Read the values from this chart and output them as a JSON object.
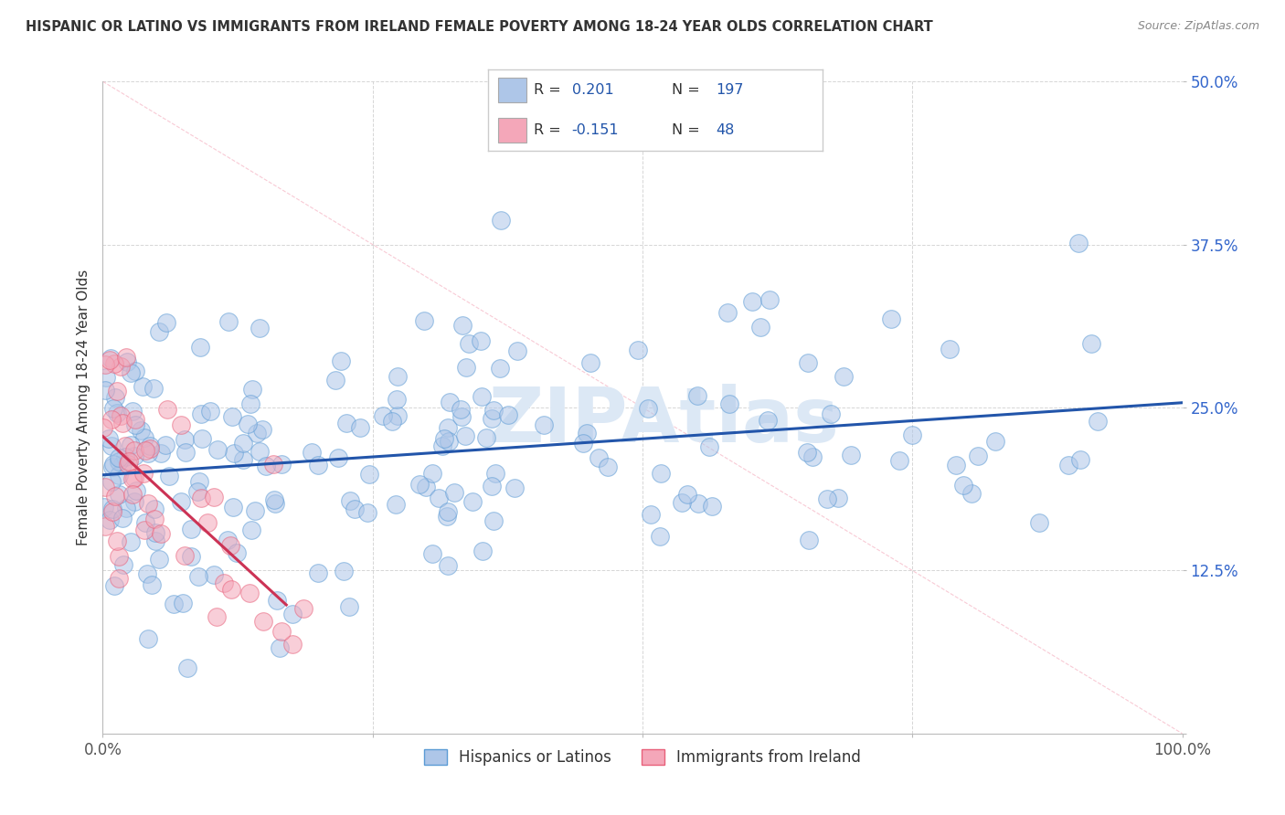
{
  "title": "HISPANIC OR LATINO VS IMMIGRANTS FROM IRELAND FEMALE POVERTY AMONG 18-24 YEAR OLDS CORRELATION CHART",
  "source": "Source: ZipAtlas.com",
  "ylabel": "Female Poverty Among 18-24 Year Olds",
  "xlim": [
    0,
    100
  ],
  "ylim": [
    0,
    50
  ],
  "yticks": [
    0,
    12.5,
    25,
    37.5,
    50
  ],
  "yticklabels_right": [
    "",
    "12.5%",
    "25.0%",
    "37.5%",
    "50.0%"
  ],
  "xtick_left_label": "0.0%",
  "xtick_right_label": "100.0%",
  "blue_R": "0.201",
  "blue_N": "197",
  "pink_R": "-0.151",
  "pink_N": "48",
  "blue_color": "#aec6e8",
  "pink_color": "#f4a7b9",
  "blue_edge_color": "#5b9bd5",
  "pink_edge_color": "#e8607a",
  "blue_line_color": "#2255aa",
  "pink_line_color": "#cc3355",
  "diag_line_color": "#f4a7b9",
  "watermark": "ZIPAtlas",
  "watermark_color": "#dce8f5",
  "legend_label_blue": "Hispanics or Latinos",
  "legend_label_pink": "Immigrants from Ireland",
  "background_color": "#ffffff",
  "grid_color": "#cccccc",
  "title_color": "#333333",
  "source_color": "#888888",
  "tick_color": "#3366cc",
  "blue_seed": 42,
  "pink_seed": 7
}
